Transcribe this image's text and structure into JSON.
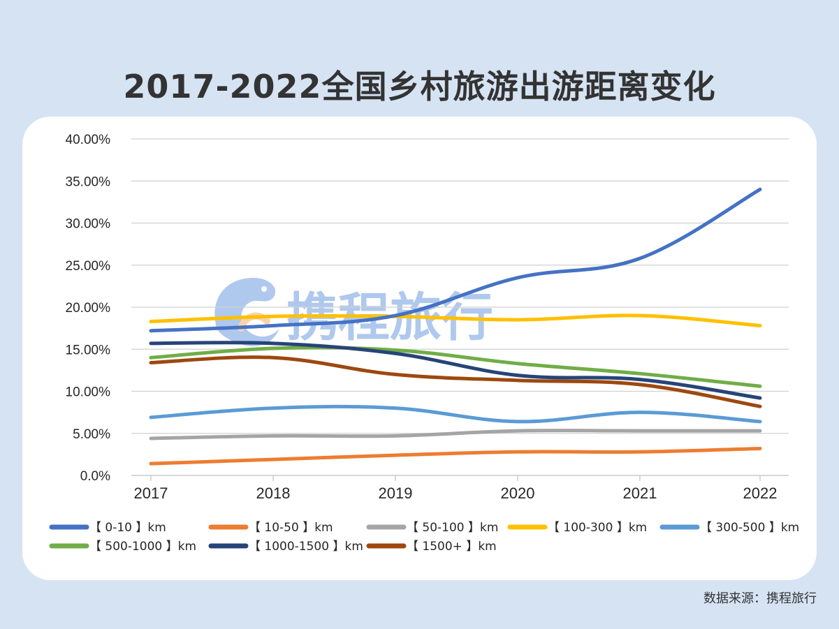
{
  "title": "2017-2022全国乡村旅游出游距离变化",
  "source": "数据来源：携程旅行",
  "watermark_text": "携程旅行",
  "chart_data": {
    "type": "line",
    "title": "2017-2022全国乡村旅游出游距离变化",
    "x": [
      "2017",
      "2018",
      "2019",
      "2020",
      "2021",
      "2022"
    ],
    "ylim": [
      0,
      40
    ],
    "y_ticks": [
      "0.0%",
      "5.00%",
      "10.00%",
      "15.00%",
      "20.00%",
      "25.00%",
      "30.00%",
      "35.00%",
      "40.00%"
    ],
    "y_tick_values": [
      0,
      5,
      10,
      15,
      20,
      25,
      30,
      35,
      40
    ],
    "grid": true,
    "legend_position": "bottom",
    "series": [
      {
        "name": "【 0-10 】km",
        "color": "#4472c4",
        "values": [
          17.2,
          17.8,
          19.0,
          23.5,
          25.8,
          34.0
        ]
      },
      {
        "name": "【 10-50 】km",
        "color": "#ed7d31",
        "values": [
          1.4,
          1.9,
          2.4,
          2.8,
          2.8,
          3.2
        ]
      },
      {
        "name": "【 50-100 】km",
        "color": "#a5a5a5",
        "values": [
          4.4,
          4.7,
          4.7,
          5.3,
          5.3,
          5.3
        ]
      },
      {
        "name": "【 100-300 】km",
        "color": "#ffc000",
        "values": [
          18.3,
          18.9,
          18.9,
          18.5,
          19.0,
          17.8
        ]
      },
      {
        "name": "【 300-500 】km",
        "color": "#5b9bd5",
        "values": [
          6.9,
          8.0,
          8.0,
          6.4,
          7.5,
          6.4
        ]
      },
      {
        "name": "【 500-1000 】km",
        "color": "#70ad47",
        "values": [
          14.0,
          15.1,
          14.9,
          13.3,
          12.1,
          10.6
        ]
      },
      {
        "name": "【 1000-1500 】km",
        "color": "#264478",
        "values": [
          15.7,
          15.7,
          14.5,
          11.9,
          11.4,
          9.2
        ]
      },
      {
        "name": "【 1500+ 】km",
        "color": "#9e480e",
        "values": [
          13.4,
          14.0,
          12.0,
          11.3,
          10.8,
          8.2
        ]
      }
    ]
  }
}
